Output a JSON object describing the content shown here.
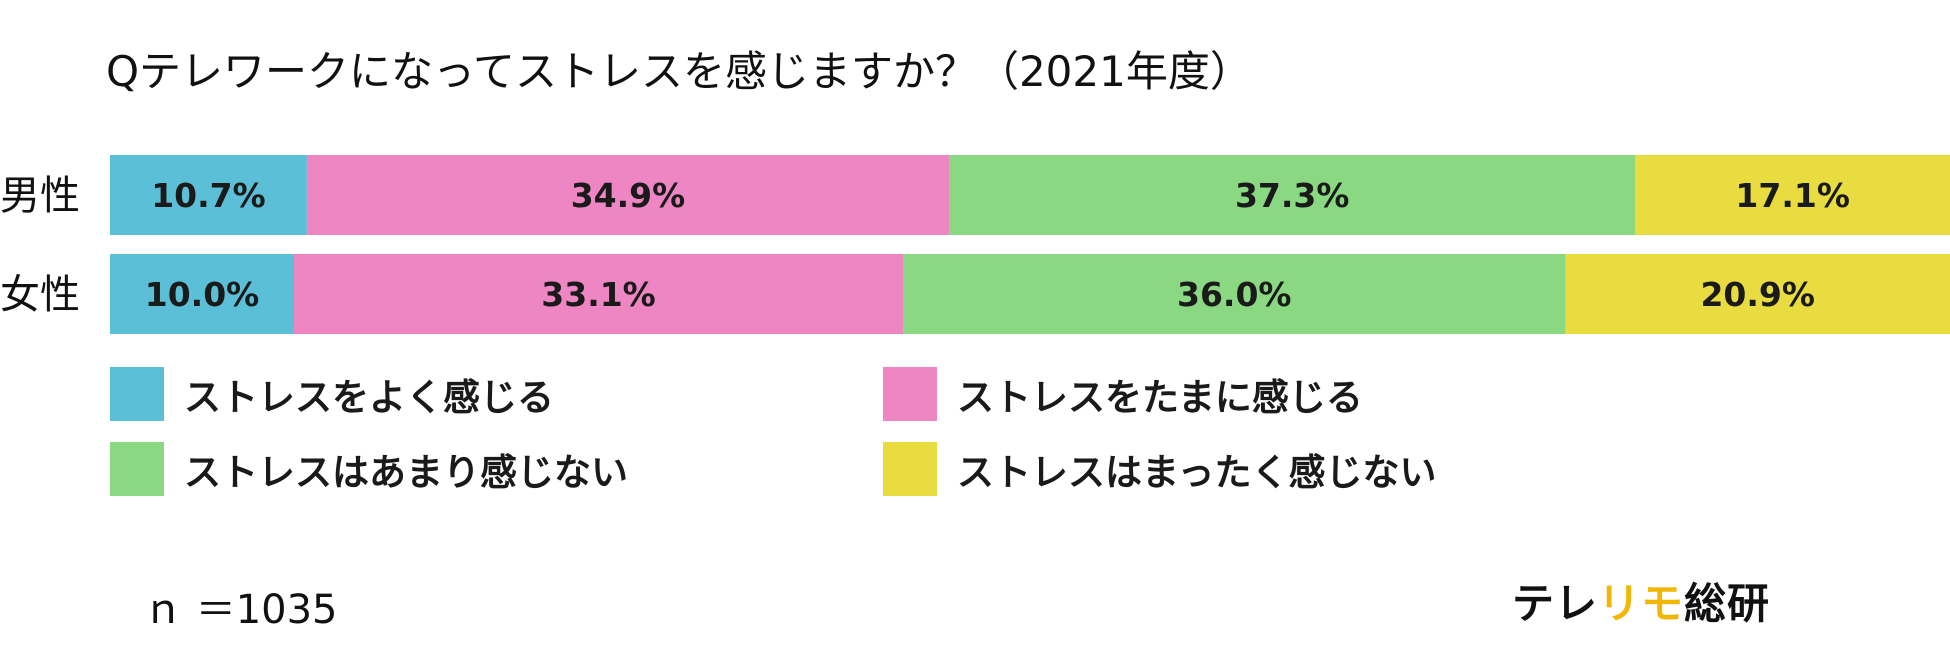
{
  "chart_data": {
    "type": "bar",
    "orientation": "horizontal",
    "stacked": true,
    "normalized_percent": true,
    "title": "Qテレワークになってストレスを感じますか？（2021年度）",
    "categories": [
      "男性",
      "女性"
    ],
    "series": [
      {
        "name": "ストレスをよく感じる",
        "values": [
          10.7,
          10.0
        ],
        "labels": [
          "10.7%",
          "10.0%"
        ],
        "color": "#5bbfd7"
      },
      {
        "name": "ストレスをたまに感じる",
        "values": [
          34.9,
          33.1
        ],
        "labels": [
          "34.9%",
          "33.1%"
        ],
        "color": "#ee86c4"
      },
      {
        "name": "ストレスはあまり感じない",
        "values": [
          37.3,
          36.0
        ],
        "labels": [
          "37.3%",
          "36.0%"
        ],
        "color": "#8ad982"
      },
      {
        "name": "ストレスはまったく感じない",
        "values": [
          17.1,
          20.9
        ],
        "labels": [
          "17.1%",
          "20.9%"
        ],
        "color": "#e8dc40"
      }
    ],
    "legend_position": "bottom",
    "grid": false,
    "xlim": [
      0,
      100
    ]
  },
  "note": "ｎ ＝1035",
  "brand": {
    "parts": [
      {
        "text": "テレ",
        "color": "#111111"
      },
      {
        "text": "リモ",
        "color": "#f2b705"
      },
      {
        "text": "総研",
        "color": "#111111"
      }
    ]
  }
}
